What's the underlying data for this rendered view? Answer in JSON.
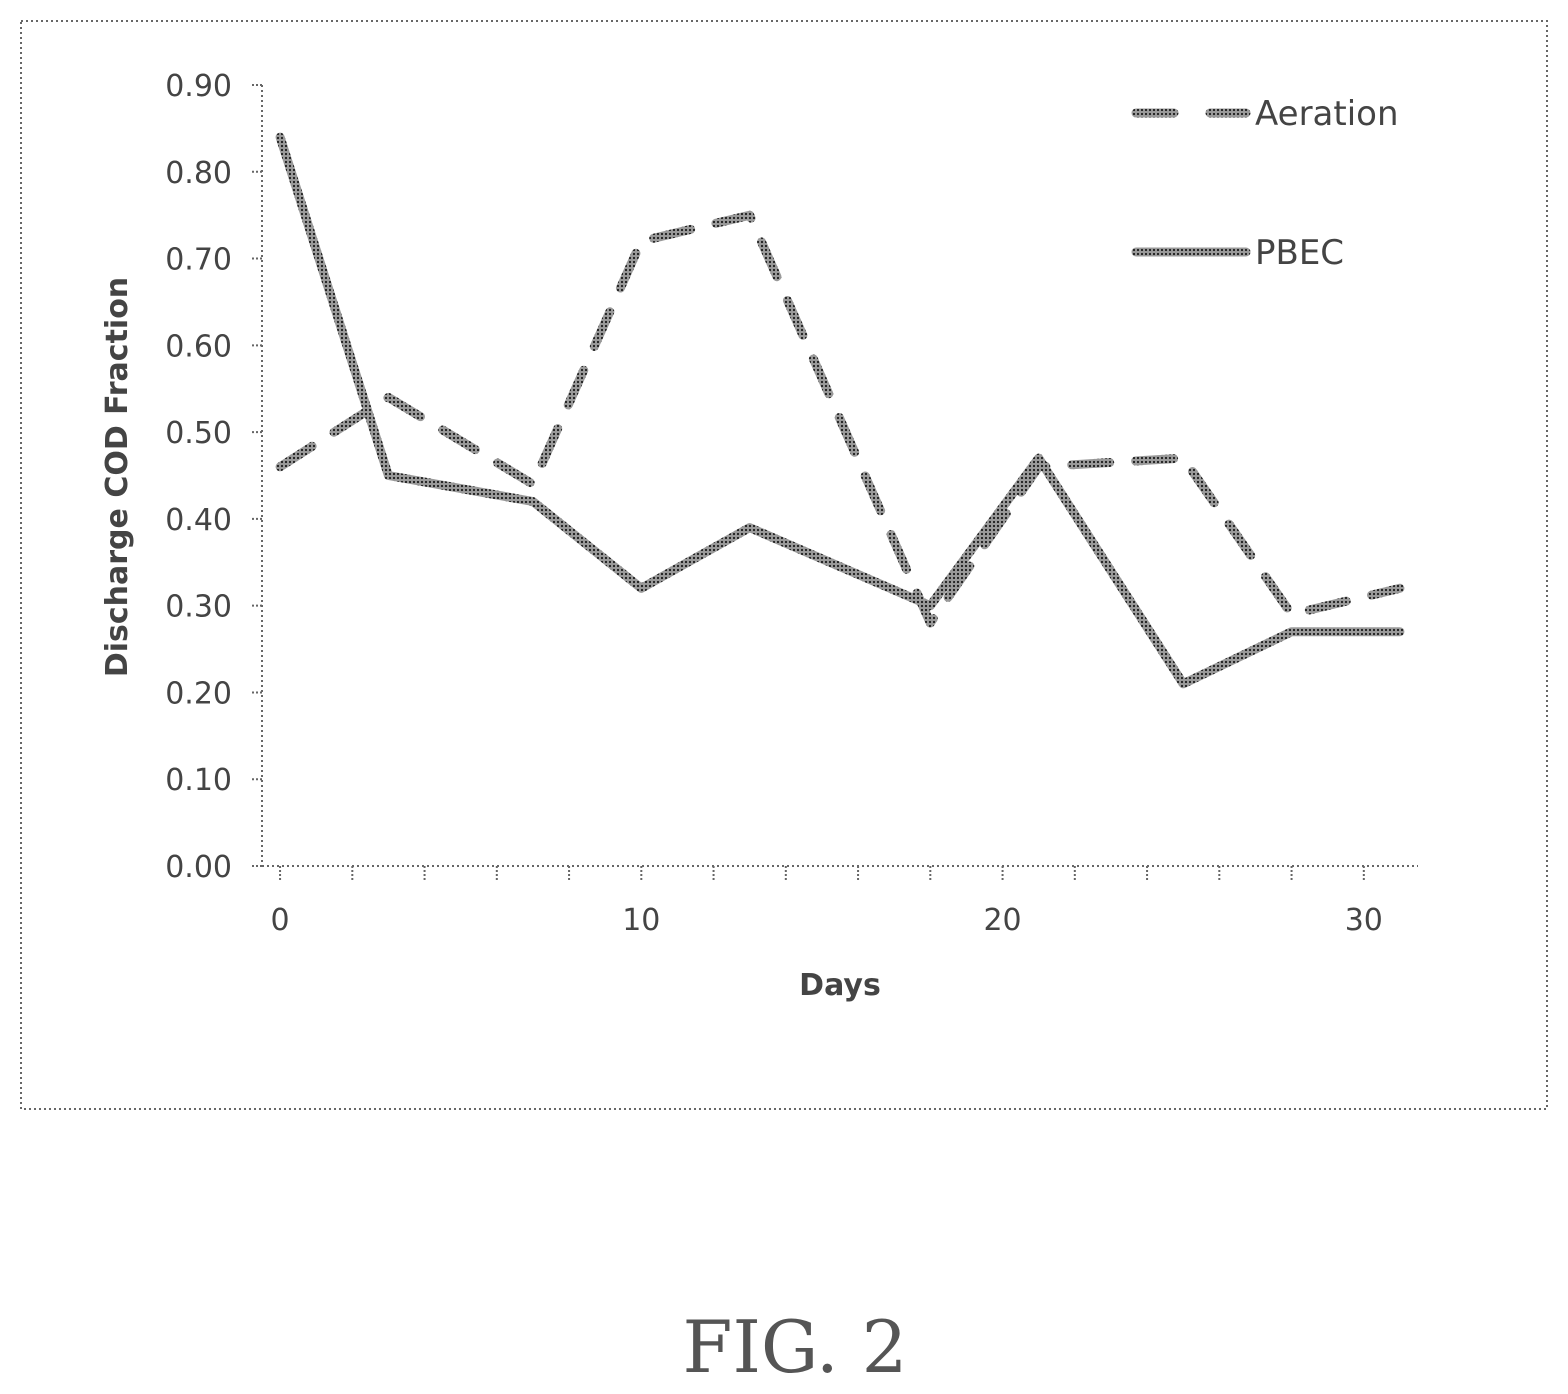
{
  "figure": {
    "caption": "FIG. 2"
  },
  "chart_data": {
    "type": "line",
    "title": "",
    "xlabel": "Days",
    "ylabel": "Discharge COD Fraction",
    "xlim": [
      -0.5,
      31.5
    ],
    "ylim": [
      0,
      0.9
    ],
    "xticks": [
      0,
      10,
      20,
      30
    ],
    "xticks_labels": [
      "0",
      "10",
      "20",
      "30"
    ],
    "xminor_step": 2,
    "yticks": [
      0,
      0.1,
      0.2,
      0.3,
      0.4,
      0.5,
      0.6,
      0.7,
      0.8,
      0.9
    ],
    "yticks_labels": [
      "0.00",
      "0.10",
      "0.20",
      "0.30",
      "0.40",
      "0.50",
      "0.60",
      "0.70",
      "0.80",
      "0.90"
    ],
    "grid": false,
    "legend_position": "top-right",
    "series": [
      {
        "name": "Aeration",
        "style": "dashed",
        "color": "#555555",
        "x": [
          0,
          3,
          7,
          10,
          13,
          18,
          21,
          25,
          28,
          31
        ],
        "y": [
          0.46,
          0.54,
          0.44,
          0.72,
          0.75,
          0.28,
          0.46,
          0.47,
          0.29,
          0.32
        ]
      },
      {
        "name": "PBEC",
        "style": "solid",
        "color": "#555555",
        "x": [
          0,
          3,
          7,
          10,
          13,
          18,
          21,
          25,
          28,
          31
        ],
        "y": [
          0.84,
          0.45,
          0.42,
          0.32,
          0.39,
          0.3,
          0.47,
          0.21,
          0.27,
          0.27
        ]
      }
    ]
  }
}
